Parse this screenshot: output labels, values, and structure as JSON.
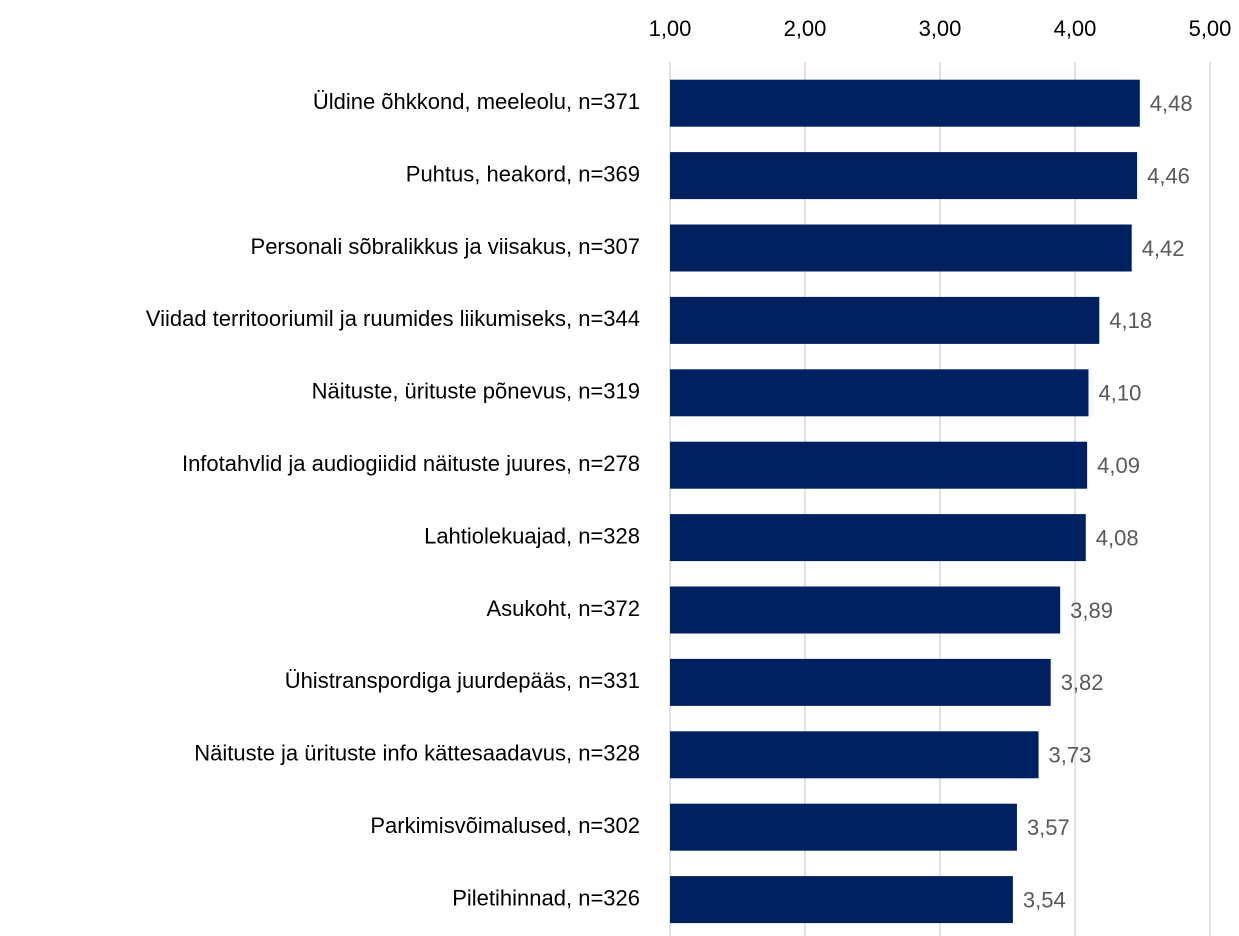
{
  "chart_data": {
    "type": "bar",
    "orientation": "horizontal",
    "categories": [
      "Üldine õhkkond, meeleolu, n=371",
      "Puhtus, heakord, n=369",
      "Personali sõbralikkus ja viisakus, n=307",
      "Viidad territooriumil ja ruumides liikumiseks, n=344",
      "Näituste, ürituste põnevus, n=319",
      "Infotahvlid ja audiogiidid näituste juures, n=278",
      "Lahtiolekuajad, n=328",
      "Asukoht, n=372",
      "Ühistranspordiga juurdepääs, n=331",
      "Näituste ja ürituste info kättesaadavus, n=328",
      "Parkimisvõimalused, n=302",
      "Piletihinnad, n=326"
    ],
    "values": [
      4.48,
      4.46,
      4.42,
      4.18,
      4.1,
      4.09,
      4.08,
      3.89,
      3.82,
      3.73,
      3.57,
      3.54
    ],
    "value_labels": [
      "4,48",
      "4,46",
      "4,42",
      "4,18",
      "4,10",
      "4,09",
      "4,08",
      "3,89",
      "3,82",
      "3,73",
      "3,57",
      "3,54"
    ],
    "color": "#002060",
    "xlim": [
      1,
      5
    ],
    "xticks": [
      {
        "value": 1,
        "label": "1,00"
      },
      {
        "value": 2,
        "label": "2,00"
      },
      {
        "value": 3,
        "label": "3,00"
      },
      {
        "value": 4,
        "label": "4,00"
      },
      {
        "value": 5,
        "label": "5,00"
      }
    ],
    "grid": true
  }
}
